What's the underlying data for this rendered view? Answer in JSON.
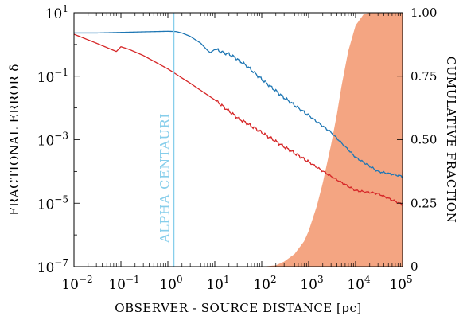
{
  "chart_data": {
    "type": "line",
    "xlabel": "OBSERVER - SOURCE DISTANCE [pc]",
    "ylabel_left": "FRACTIONAL ERROR δ",
    "ylabel_right": "CUMULATIVE FRACTION",
    "x_scale": "log",
    "y_scale_left": "log",
    "xlim": [
      0.01,
      100000
    ],
    "ylim_left": [
      1e-07,
      10
    ],
    "ylim_right": [
      0,
      1
    ],
    "x_ticks": [
      {
        "value": 0.01,
        "base": "10",
        "exp": "−2"
      },
      {
        "value": 0.1,
        "base": "10",
        "exp": "−1"
      },
      {
        "value": 1,
        "base": "10",
        "exp": "0"
      },
      {
        "value": 10,
        "base": "10",
        "exp": "1"
      },
      {
        "value": 100,
        "base": "10",
        "exp": "2"
      },
      {
        "value": 1000,
        "base": "10",
        "exp": "3"
      },
      {
        "value": 10000,
        "base": "10",
        "exp": "4"
      },
      {
        "value": 100000,
        "base": "10",
        "exp": "5"
      }
    ],
    "y_ticks_left": [
      {
        "value": 10,
        "base": "10",
        "exp": "1"
      },
      {
        "value": 0.1,
        "base": "10",
        "exp": "−1"
      },
      {
        "value": 0.001,
        "base": "10",
        "exp": "−3"
      },
      {
        "value": 1e-05,
        "base": "10",
        "exp": "−5"
      },
      {
        "value": 1e-07,
        "base": "10",
        "exp": "−7"
      }
    ],
    "y_ticks_right": [
      {
        "value": 1.0,
        "label": "1.00"
      },
      {
        "value": 0.75,
        "label": "0.75"
      },
      {
        "value": 0.5,
        "label": "0.50"
      },
      {
        "value": 0.25,
        "label": "0.25"
      },
      {
        "value": 0,
        "label": "0"
      }
    ],
    "series": [
      {
        "color": "#1f77b4",
        "axis": "left",
        "x": [
          0.01,
          0.03,
          0.1,
          0.3,
          1,
          1.5,
          2,
          3,
          5,
          7,
          8,
          10,
          12,
          15,
          20,
          30,
          50,
          100,
          300,
          1000,
          3000,
          10000,
          30000,
          100000
        ],
        "y": [
          2.3,
          2.3,
          2.4,
          2.5,
          2.6,
          2.55,
          2.3,
          1.8,
          1.1,
          0.65,
          0.55,
          0.7,
          0.65,
          0.55,
          0.5,
          0.35,
          0.2,
          0.08,
          0.021,
          0.0058,
          0.0017,
          0.00028,
          0.0001,
          7e-05
        ]
      },
      {
        "color": "#d62728",
        "axis": "left",
        "x": [
          0.01,
          0.03,
          0.08,
          0.1,
          0.15,
          0.3,
          1,
          3,
          10,
          30,
          100,
          300,
          1000,
          3000,
          10000,
          30000,
          100000
        ],
        "y": [
          2.1,
          1.1,
          0.6,
          0.85,
          0.7,
          0.45,
          0.17,
          0.06,
          0.018,
          0.005,
          0.0017,
          0.0006,
          0.0002,
          7e-05,
          2.5e-05,
          2e-05,
          9e-06
        ]
      },
      {
        "color": "#f4a582",
        "axis": "right",
        "type": "area",
        "x": [
          100,
          200,
          300,
          500,
          800,
          1000,
          1500,
          2000,
          3000,
          4000,
          5000,
          7000,
          10000,
          15000,
          20000,
          30000,
          100000
        ],
        "y": [
          0,
          0.005,
          0.02,
          0.05,
          0.1,
          0.14,
          0.24,
          0.33,
          0.48,
          0.6,
          0.71,
          0.85,
          0.95,
          0.995,
          1.0,
          1.0,
          1.0
        ]
      }
    ],
    "annotations": [
      {
        "text": "ALPHA CENTAURI",
        "x": 1.34,
        "color": "#87ceeb"
      }
    ]
  }
}
